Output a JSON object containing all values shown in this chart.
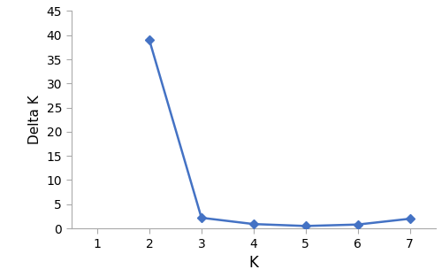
{
  "x_points": [
    2,
    3,
    4,
    5,
    6,
    7
  ],
  "delta_k": [
    39.0,
    2.2,
    0.9,
    0.5,
    0.8,
    2.0
  ],
  "line_color": "#4472C4",
  "marker_color": "#4472C4",
  "marker_style": "D",
  "marker_size": 5,
  "line_width": 1.8,
  "xlabel": "K",
  "ylabel": "Delta K",
  "xlim": [
    0.5,
    7.5
  ],
  "ylim": [
    0,
    45
  ],
  "yticks": [
    0,
    5,
    10,
    15,
    20,
    25,
    30,
    35,
    40,
    45
  ],
  "xticks": [
    1,
    2,
    3,
    4,
    5,
    6,
    7
  ],
  "xlabel_fontsize": 12,
  "ylabel_fontsize": 11,
  "tick_fontsize": 10,
  "figsize": [
    5.0,
    3.13
  ],
  "dpi": 100,
  "background_color": "#ffffff",
  "spine_color": "#aaaaaa",
  "axhline_color": "#bbbbbb",
  "axhline_lw": 0.8
}
